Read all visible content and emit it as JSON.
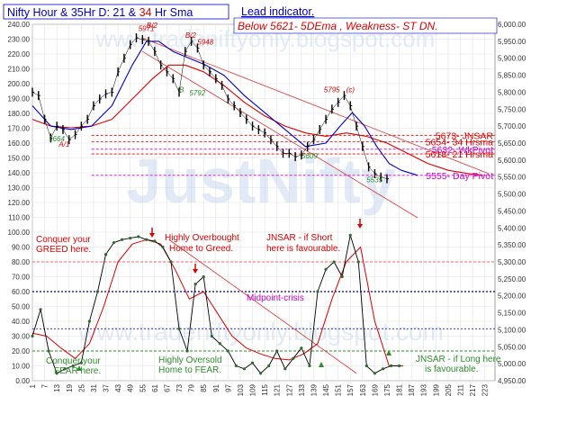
{
  "header": {
    "title_pre": "Nifty Hour & 35Hr D: 21 & ",
    "title_red": "34",
    "title_post": " Hr Sma",
    "lead": "Lead indicator.",
    "subtitle": "Below 5621-  5DEma ,  Weakness- ST  DN."
  },
  "watermark": {
    "main": "JustNifty",
    "url_top": "www.tradeniftyonly.blogspot.com",
    "url_bottom": "www.tradeniftyonly.blogspot.com"
  },
  "colors": {
    "price": "#000000",
    "fast_ma": "#0000cc",
    "slow_ma": "#dd0000",
    "trend": "#dd3333",
    "osc": "#dd0000",
    "osc_dots": "#2e6b2e",
    "header_blue": "#0000cc",
    "header_red": "#dd0000",
    "pivot_pink": "#cc00cc",
    "midpoint": "#000080",
    "ob_line": "#ff6666",
    "os_line": "#2e8b2e",
    "annotation_red": "#dd0000",
    "annotation_green": "#2e8b2e"
  },
  "levels": [
    {
      "label": "5673- JNSAR",
      "value": 5673,
      "color": "#dd0000"
    },
    {
      "label": "5654- 34 Hrsma",
      "value": 5654,
      "color": "#dd0000"
    },
    {
      "label": "5632- WkPivot",
      "value": 5632,
      "color": "#cc00cc"
    },
    {
      "label": "5618- 21 Hrsma",
      "value": 5618,
      "color": "#dd0000"
    },
    {
      "label": "5555- Day Pivot",
      "value": 5555,
      "color": "#cc00cc"
    }
  ],
  "annotations": [
    {
      "text": "Conquer your",
      "section": "osc",
      "color": "#dd0000"
    },
    {
      "text": "GREED here.",
      "section": "osc",
      "color": "#dd0000"
    },
    {
      "text": "Highly Overbought",
      "section": "osc",
      "color": "#dd0000"
    },
    {
      "text": "Home to Greed.",
      "section": "osc",
      "color": "#dd0000"
    },
    {
      "text": "JNSAR - if Short",
      "section": "osc",
      "color": "#dd0000"
    },
    {
      "text": "here is favourable.",
      "section": "osc",
      "color": "#dd0000"
    },
    {
      "text": "Midpoint-crisis",
      "section": "osc",
      "color": "#cc00cc"
    },
    {
      "text": "Conquer your",
      "section": "osc",
      "color": "#2e8b2e"
    },
    {
      "text": "FEAR here.",
      "section": "osc",
      "color": "#2e8b2e"
    },
    {
      "text": "Highly Oversold",
      "section": "osc",
      "color": "#2e8b2e"
    },
    {
      "text": "Home to FEAR.",
      "section": "osc",
      "color": "#2e8b2e"
    },
    {
      "text": "JNSAR - if Long here",
      "section": "osc",
      "color": "#2e8b2e"
    },
    {
      "text": "is favourable.",
      "section": "osc",
      "color": "#2e8b2e"
    }
  ],
  "wave_labels": [
    {
      "text": "5664",
      "x": 9,
      "price": 5655,
      "color": "#2e8b2e"
    },
    {
      "text": "A/1",
      "x": 14,
      "price": 5640,
      "color": "#dd0000"
    },
    {
      "text": "5971",
      "x": 53,
      "price": 5980,
      "color": "#dd0000"
    },
    {
      "text": "B/2",
      "x": 57,
      "price": 5990,
      "color": "#dd0000"
    },
    {
      "text": "B/2",
      "x": 76,
      "price": 5960,
      "color": "#dd0000"
    },
    {
      "text": "5948",
      "x": 82,
      "price": 5940,
      "color": "#dd0000"
    },
    {
      "text": "B",
      "x": 73,
      "price": 5800,
      "color": "#2e8b2e"
    },
    {
      "text": "5792",
      "x": 78,
      "price": 5790,
      "color": "#2e8b2e"
    },
    {
      "text": "5795",
      "x": 144,
      "price": 5800,
      "color": "#dd0000"
    },
    {
      "text": "(c)",
      "x": 155,
      "price": 5800,
      "color": "#dd0000"
    },
    {
      "text": "5609",
      "x": 133,
      "price": 5605,
      "color": "#2e8b2e"
    },
    {
      "text": "5535",
      "x": 165,
      "price": 5535,
      "color": "#2e8b2e"
    }
  ],
  "chart_data": [
    {
      "type": "line",
      "name": "price",
      "x_ticks": [
        "1",
        "7",
        "13",
        "19",
        "25",
        "31",
        "37",
        "43",
        "49",
        "55",
        "61",
        "67",
        "73",
        "79",
        "85",
        "91",
        "97",
        "103",
        "109",
        "115",
        "121",
        "127",
        "133",
        "139",
        "145",
        "151",
        "157",
        "163",
        "169",
        "175",
        "181",
        "187",
        "193",
        "199",
        "205",
        "211",
        "217",
        "223"
      ],
      "xlim": [
        1,
        228
      ],
      "left_axis": {
        "ylim": [
          0,
          240
        ],
        "ticks": [
          "0.00",
          "10.00",
          "20.00",
          "30.00",
          "40.00",
          "50.00",
          "60.00",
          "70.00",
          "80.00",
          "90.00",
          "100.00",
          "110.00",
          "120.00",
          "130.00",
          "140.00",
          "150.00",
          "160.00",
          "170.00",
          "180.00",
          "190.00",
          "200.00",
          "210.00",
          "220.00",
          "230.00",
          "240.00"
        ]
      },
      "right_axis": {
        "ylim": [
          4950,
          6000
        ],
        "ticks": [
          "4,950.00",
          "5,000.00",
          "5,050.00",
          "5,100.00",
          "5,150.00",
          "5,200.00",
          "5,250.00",
          "5,300.00",
          "5,350.00",
          "5,400.00",
          "5,450.00",
          "5,500.00",
          "5,550.00",
          "5,600.00",
          "5,650.00",
          "5,700.00",
          "5,750.00",
          "5,800.00",
          "5,850.00",
          "5,900.00",
          "5,950.00",
          "6,000.00"
        ]
      },
      "price_series": {
        "x": [
          1,
          4,
          7,
          10,
          13,
          16,
          19,
          22,
          25,
          28,
          31,
          34,
          37,
          40,
          43,
          46,
          49,
          52,
          55,
          58,
          61,
          64,
          67,
          70,
          73,
          76,
          79,
          82,
          85,
          88,
          91,
          94,
          97,
          100,
          103,
          106,
          109,
          112,
          115,
          118,
          121,
          124,
          127,
          130,
          133,
          136,
          139,
          142,
          145,
          148,
          151,
          154,
          157,
          160,
          163,
          166,
          169,
          172,
          175
        ],
        "y": [
          5800,
          5790,
          5720,
          5665,
          5700,
          5690,
          5660,
          5675,
          5700,
          5720,
          5760,
          5780,
          5795,
          5800,
          5860,
          5900,
          5940,
          5960,
          5955,
          5950,
          5920,
          5880,
          5860,
          5840,
          5800,
          5920,
          5950,
          5930,
          5880,
          5860,
          5840,
          5820,
          5780,
          5760,
          5740,
          5720,
          5700,
          5690,
          5680,
          5660,
          5640,
          5620,
          5620,
          5610,
          5615,
          5640,
          5660,
          5690,
          5720,
          5750,
          5770,
          5790,
          5760,
          5700,
          5640,
          5580,
          5560,
          5550,
          5545
        ]
      },
      "fast_ma": {
        "x": [
          1,
          10,
          20,
          30,
          40,
          50,
          57,
          63,
          70,
          78,
          86,
          95,
          105,
          115,
          125,
          135,
          145,
          152,
          158,
          164,
          170,
          176,
          182,
          190
        ],
        "y": [
          5760,
          5700,
          5690,
          5700,
          5760,
          5880,
          5950,
          5950,
          5920,
          5900,
          5880,
          5850,
          5790,
          5740,
          5690,
          5640,
          5650,
          5700,
          5740,
          5700,
          5640,
          5590,
          5570,
          5555
        ]
      },
      "slow_ma": {
        "x": [
          1,
          10,
          20,
          30,
          40,
          50,
          60,
          68,
          76,
          85,
          95,
          105,
          115,
          125,
          135,
          145,
          155,
          165,
          175,
          185,
          195,
          205,
          215,
          222
        ],
        "y": [
          5720,
          5700,
          5695,
          5700,
          5720,
          5780,
          5840,
          5880,
          5880,
          5860,
          5820,
          5770,
          5730,
          5700,
          5680,
          5670,
          5680,
          5670,
          5650,
          5620,
          5590,
          5570,
          5560,
          5555
        ]
      }
    },
    {
      "type": "line",
      "name": "oscillator",
      "ylim": [
        0,
        110
      ],
      "osc_levels": {
        "overbought": 80,
        "midpoint": 60,
        "oversold": 20,
        "mid_lower": 35
      },
      "fast_osc": {
        "x": [
          1,
          5,
          9,
          13,
          17,
          21,
          25,
          29,
          33,
          37,
          41,
          45,
          49,
          53,
          57,
          61,
          65,
          69,
          73,
          77,
          81,
          85,
          89,
          93,
          97,
          101,
          105,
          109,
          113,
          117,
          121,
          125,
          129,
          133,
          137,
          141,
          145,
          149,
          153,
          157,
          161,
          165,
          169,
          173,
          177,
          181
        ],
        "y": [
          30,
          48,
          20,
          5,
          8,
          10,
          12,
          40,
          60,
          85,
          93,
          95,
          96,
          97,
          95,
          94,
          90,
          80,
          35,
          20,
          65,
          70,
          30,
          25,
          20,
          10,
          8,
          12,
          5,
          10,
          20,
          8,
          15,
          22,
          10,
          60,
          75,
          80,
          70,
          98,
          80,
          10,
          5,
          8,
          10,
          10
        ]
      },
      "slow_osc": {
        "x": [
          1,
          8,
          15,
          22,
          29,
          36,
          43,
          50,
          57,
          64,
          71,
          78,
          85,
          92,
          99,
          106,
          113,
          120,
          127,
          134,
          141,
          148,
          155,
          162,
          169,
          176,
          183
        ],
        "y": [
          32,
          30,
          22,
          15,
          25,
          50,
          80,
          92,
          95,
          92,
          75,
          55,
          60,
          45,
          30,
          22,
          18,
          15,
          14,
          18,
          25,
          55,
          80,
          90,
          40,
          10,
          10
        ]
      }
    }
  ]
}
